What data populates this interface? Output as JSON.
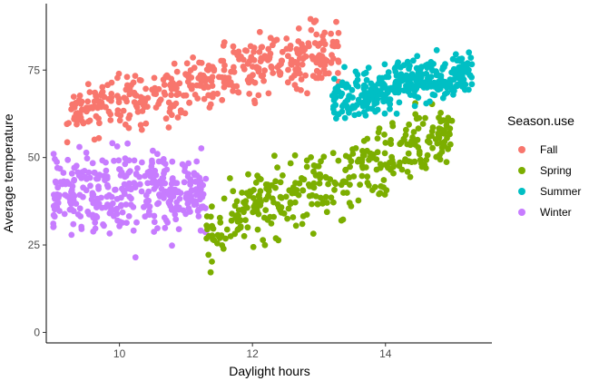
{
  "chart_data": {
    "type": "scatter",
    "title": "",
    "xlabel": "Daylight hours",
    "ylabel": "Average temperature",
    "xlim": [
      8.9,
      15.6
    ],
    "ylim": [
      -3,
      94
    ],
    "xticks": [
      10,
      12,
      14
    ],
    "yticks": [
      0,
      25,
      50,
      75
    ],
    "grid": false,
    "legend": {
      "title": "Season.use",
      "position": "right"
    },
    "series": [
      {
        "name": "Fall",
        "color": "#F8766D",
        "x_range": [
          9.2,
          13.3
        ],
        "y_intercept": 20,
        "y_slope": 4.6,
        "spread": 7,
        "count": 420
      },
      {
        "name": "Spring",
        "color": "#7CAE00",
        "x_range": [
          11.3,
          15.0
        ],
        "y_intercept": -55,
        "y_slope": 7.5,
        "spread": 8,
        "count": 360
      },
      {
        "name": "Summer",
        "color": "#00BFC4",
        "x_range": [
          13.2,
          15.3
        ],
        "y_intercept": 18,
        "y_slope": 3.7,
        "spread": 5.5,
        "count": 330
      },
      {
        "name": "Winter",
        "color": "#C77CFF",
        "x_range": [
          9.0,
          11.3
        ],
        "y_intercept": 45,
        "y_slope": -0.5,
        "spread": 10,
        "count": 360
      }
    ]
  }
}
